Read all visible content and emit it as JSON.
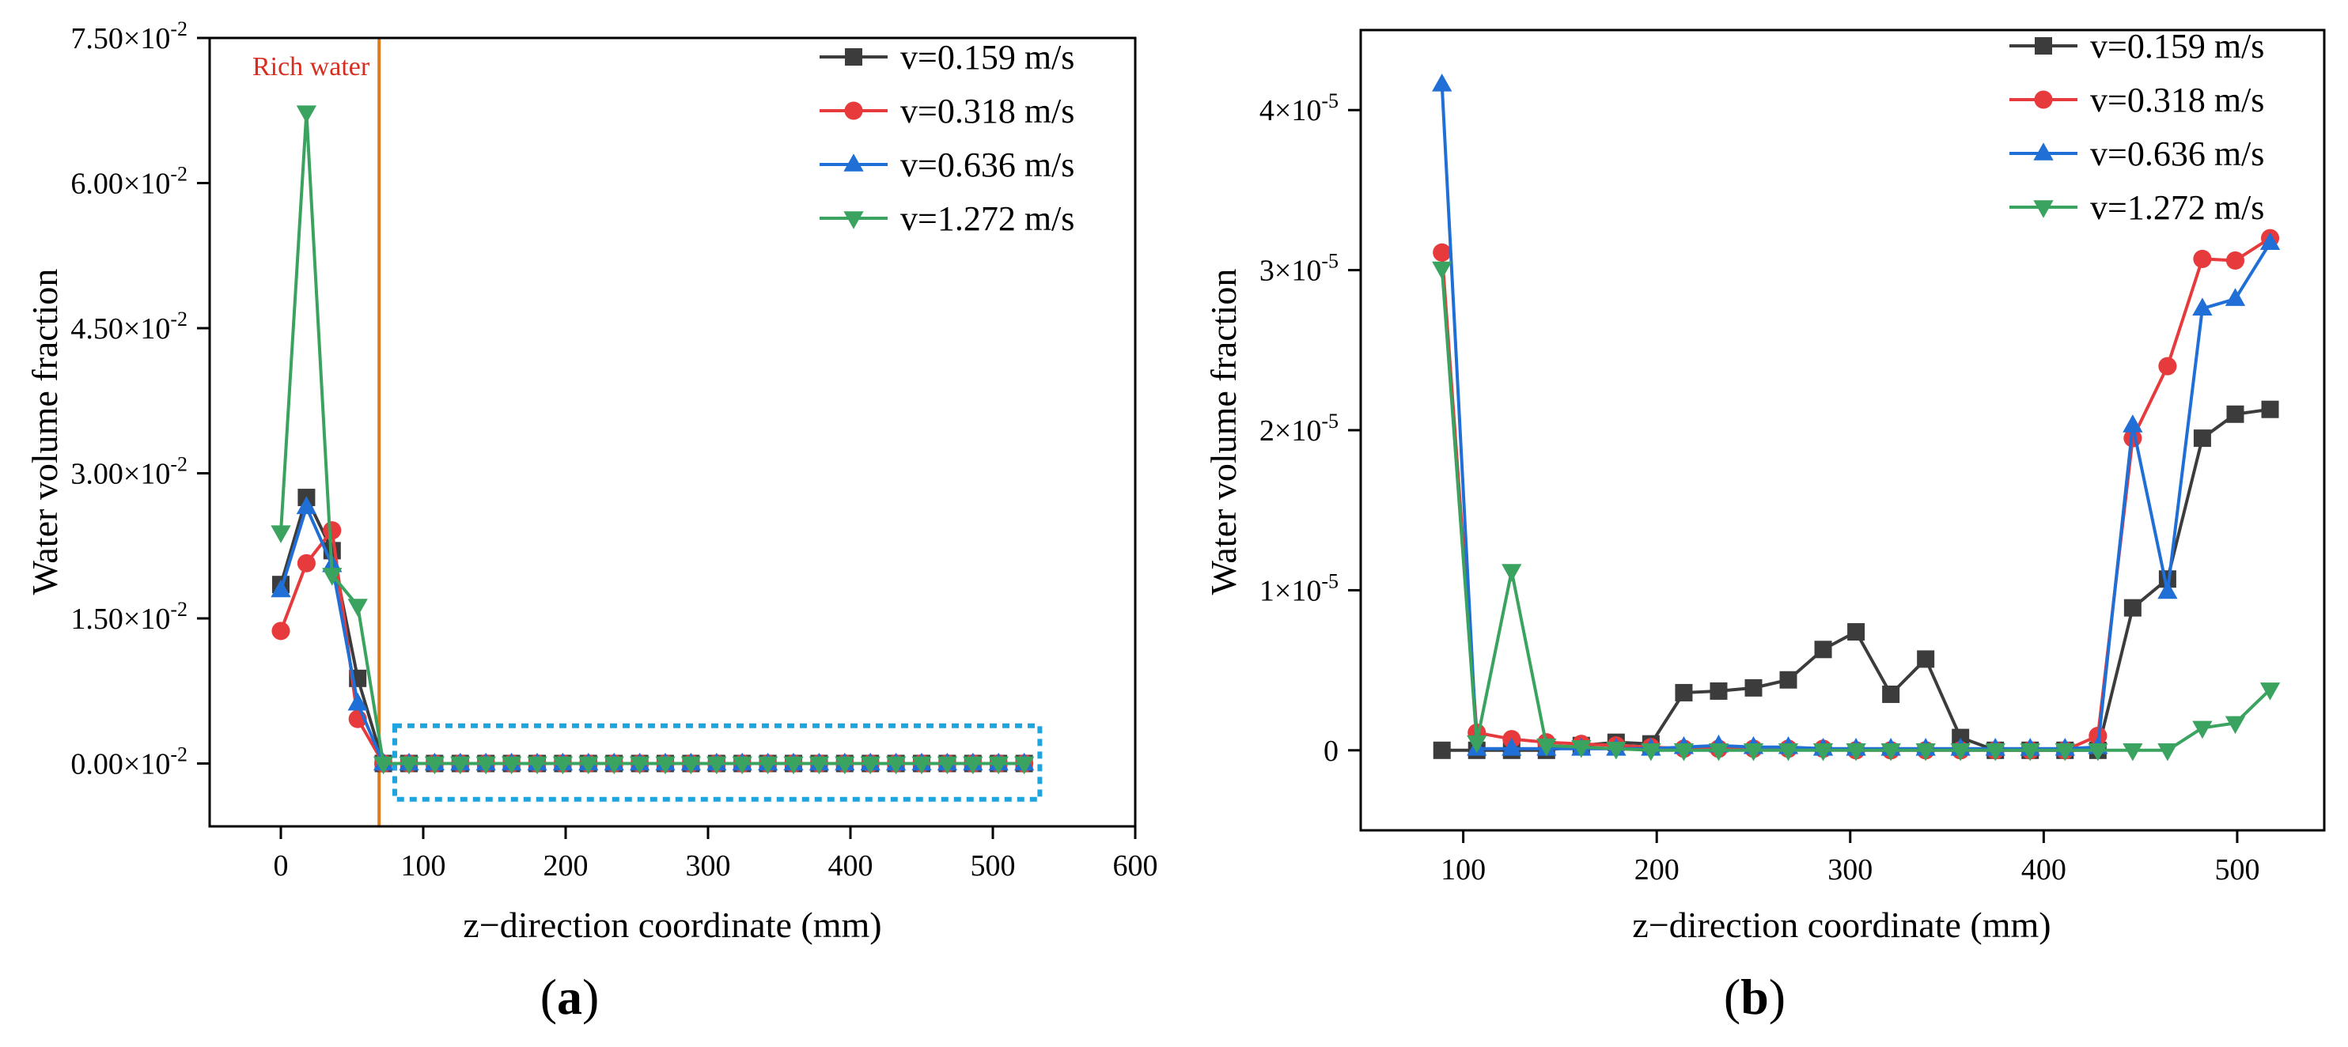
{
  "chart_data": [
    {
      "type": "line",
      "panel_label": "a",
      "xlabel": "z−direction coordinate (mm)",
      "ylabel": "Water volume fraction",
      "xlim": [
        -50,
        600
      ],
      "ylim": [
        -0.0065,
        0.075
      ],
      "xticks": [
        0,
        100,
        200,
        300,
        400,
        500,
        600
      ],
      "xtick_labels": [
        "0",
        "100",
        "200",
        "300",
        "400",
        "500",
        "600"
      ],
      "yticks": [
        0,
        0.015,
        0.03,
        0.045,
        0.06,
        0.075
      ],
      "ytick_mantissa": [
        "0.00",
        "1.50",
        "3.00",
        "4.50",
        "6.00",
        "7.50"
      ],
      "ytick_times": "×10",
      "ytick_exponent": "-2",
      "annotation": {
        "text": "Rich water",
        "x": 69,
        "color": "#d62d20",
        "line_color": "#e07b1a"
      },
      "highlight_box": {
        "x_range": [
          80,
          533
        ],
        "y_range": [
          -0.0037,
          0.0039
        ],
        "color": "#1ea4df"
      },
      "legend_position": "top-right",
      "x": [
        0,
        18,
        36,
        54,
        72,
        90,
        108,
        126,
        144,
        162,
        180,
        198,
        216,
        234,
        252,
        270,
        288,
        306,
        324,
        342,
        360,
        378,
        396,
        414,
        432,
        450,
        468,
        486,
        504,
        522
      ],
      "series": [
        {
          "name": "v=0.159 m/s",
          "color": "#3c3c3c",
          "marker": "square",
          "values": [
            0.0185,
            0.0275,
            0.022,
            0.0088,
            0,
            0,
            0,
            0,
            0,
            0,
            0,
            0,
            0,
            0,
            0,
            0,
            0,
            0,
            0,
            0,
            0,
            0,
            0,
            0,
            0,
            0,
            0,
            0,
            0,
            0
          ]
        },
        {
          "name": "v=0.318 m/s",
          "color": "#e63a3c",
          "marker": "circle",
          "values": [
            0.0137,
            0.0207,
            0.0241,
            0.0046,
            0,
            0,
            0,
            0,
            0,
            0,
            0,
            0,
            0,
            0,
            0,
            0,
            0,
            0,
            0,
            0,
            0,
            0,
            0,
            0,
            0,
            0,
            0,
            0,
            0,
            0
          ]
        },
        {
          "name": "v=0.636 m/s",
          "color": "#1f6fd6",
          "marker": "triangle-up",
          "values": [
            0.0179,
            0.0265,
            0.0205,
            0.0062,
            0,
            0,
            0,
            0,
            0,
            0,
            0,
            0,
            0,
            0,
            0,
            0,
            0,
            0,
            0,
            0,
            0,
            0,
            0,
            0,
            0,
            0,
            0,
            0,
            0,
            0
          ]
        },
        {
          "name": "v=1.272 m/s",
          "color": "#3aa35f",
          "marker": "triangle-down",
          "values": [
            0.0239,
            0.0673,
            0.0195,
            0.0163,
            0,
            0,
            0,
            0,
            0,
            0,
            0,
            0,
            0,
            0,
            0,
            0,
            0,
            0,
            0,
            0,
            0,
            0,
            0,
            0,
            0,
            0,
            0,
            0,
            0,
            0
          ]
        }
      ]
    },
    {
      "type": "line",
      "panel_label": "b",
      "xlabel": "z−direction coordinate (mm)",
      "ylabel": "Water volume fraction",
      "xlim": [
        47,
        545
      ],
      "ylim": [
        -5e-06,
        4.5e-05
      ],
      "xticks": [
        100,
        200,
        300,
        400,
        500
      ],
      "xtick_labels": [
        "100",
        "200",
        "300",
        "400",
        "500"
      ],
      "yticks": [
        0,
        1e-05,
        2e-05,
        3e-05,
        4e-05
      ],
      "ytick_labels": [
        "0",
        "1×10",
        "2×10",
        "3×10",
        "4×10"
      ],
      "ytick_exponent": "-5",
      "legend_position": "top-right",
      "x": [
        89,
        107,
        125,
        143,
        161,
        179,
        197,
        214,
        232,
        250,
        268,
        286,
        303,
        321,
        339,
        357,
        375,
        393,
        411,
        428,
        446,
        464,
        482,
        499,
        517
      ],
      "series": [
        {
          "name": "v=0.159 m/s",
          "color": "#3c3c3c",
          "marker": "square",
          "values": [
            0,
            0,
            0,
            0,
            3e-07,
            5e-07,
            4e-07,
            3.6e-06,
            3.7e-06,
            3.9e-06,
            4.4e-06,
            6.3e-06,
            7.4e-06,
            3.5e-06,
            5.7e-06,
            8e-07,
            0,
            0,
            0,
            0,
            8.9e-06,
            1.07e-05,
            1.95e-05,
            2.1e-05,
            2.13e-05
          ]
        },
        {
          "name": "v=0.318 m/s",
          "color": "#e63a3c",
          "marker": "circle",
          "values": [
            3.11e-05,
            1.1e-06,
            7e-07,
            5e-07,
            4e-07,
            3e-07,
            2e-07,
            1e-07,
            1e-07,
            1e-07,
            1e-07,
            1e-07,
            0,
            0,
            0,
            0,
            0,
            0,
            0,
            9e-07,
            1.95e-05,
            2.4e-05,
            3.07e-05,
            3.06e-05,
            3.2e-05
          ]
        },
        {
          "name": "v=0.636 m/s",
          "color": "#1f6fd6",
          "marker": "triangle-up",
          "values": [
            4.16e-05,
            1e-07,
            1e-07,
            1e-07,
            1e-07,
            1e-07,
            1e-07,
            2e-07,
            3e-07,
            2e-07,
            2e-07,
            1e-07,
            1e-07,
            1e-07,
            1e-07,
            1e-07,
            1e-07,
            1e-07,
            1e-07,
            2e-07,
            2.03e-05,
            9.9e-06,
            2.76e-05,
            2.82e-05,
            3.17e-05
          ]
        },
        {
          "name": "v=1.272 m/s",
          "color": "#3aa35f",
          "marker": "triangle-down",
          "values": [
            3.01e-05,
            5e-07,
            1.12e-05,
            3e-07,
            2e-07,
            1e-07,
            0,
            0,
            0,
            0,
            0,
            0,
            0,
            0,
            0,
            0,
            0,
            0,
            0,
            0,
            0,
            0,
            1.4e-06,
            1.7e-06,
            3.8e-06
          ]
        }
      ]
    }
  ]
}
